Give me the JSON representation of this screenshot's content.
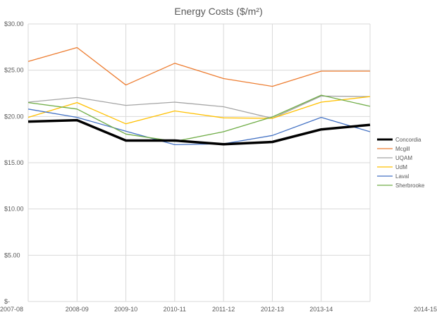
{
  "chart_data": {
    "type": "line",
    "title": "Energy Costs ($/m²)",
    "xlabel": "",
    "ylabel": "",
    "categories": [
      "2007-08",
      "2008-09",
      "2009-10",
      "2010-11",
      "2011-12",
      "2012-13",
      "2013-14",
      "2014-15"
    ],
    "ylim": [
      0,
      30
    ],
    "y_ticks": [
      "$-",
      "$5.00",
      "$10.00",
      "$15.00",
      "$20.00",
      "$25.00",
      "$30.00"
    ],
    "grid": true,
    "legend_position": "right",
    "series": [
      {
        "name": "Concordia",
        "color": "#000000",
        "width": 3.5,
        "values": [
          19.45,
          19.6,
          17.4,
          17.4,
          17.0,
          17.25,
          18.6,
          19.1
        ]
      },
      {
        "name": "Mcgill",
        "color": "#ed7d31",
        "width": 1.3,
        "values": [
          25.95,
          27.45,
          23.4,
          25.75,
          24.1,
          23.25,
          24.9,
          24.9
        ]
      },
      {
        "name": "UQAM",
        "color": "#a5a5a5",
        "width": 1.3,
        "values": [
          21.55,
          22.05,
          21.2,
          21.55,
          21.05,
          19.8,
          22.2,
          22.15
        ]
      },
      {
        "name": "UdM",
        "color": "#ffc000",
        "width": 1.3,
        "values": [
          19.9,
          21.5,
          19.2,
          20.6,
          19.85,
          19.8,
          21.55,
          22.15
        ]
      },
      {
        "name": "Laval",
        "color": "#4472c4",
        "width": 1.3,
        "values": [
          20.8,
          19.9,
          18.4,
          16.95,
          17.05,
          17.95,
          19.9,
          18.35
        ]
      },
      {
        "name": "Sherbrooke",
        "color": "#70ad47",
        "width": 1.3,
        "values": [
          21.5,
          20.8,
          18.1,
          17.3,
          18.35,
          19.95,
          22.3,
          21.1
        ]
      }
    ]
  }
}
